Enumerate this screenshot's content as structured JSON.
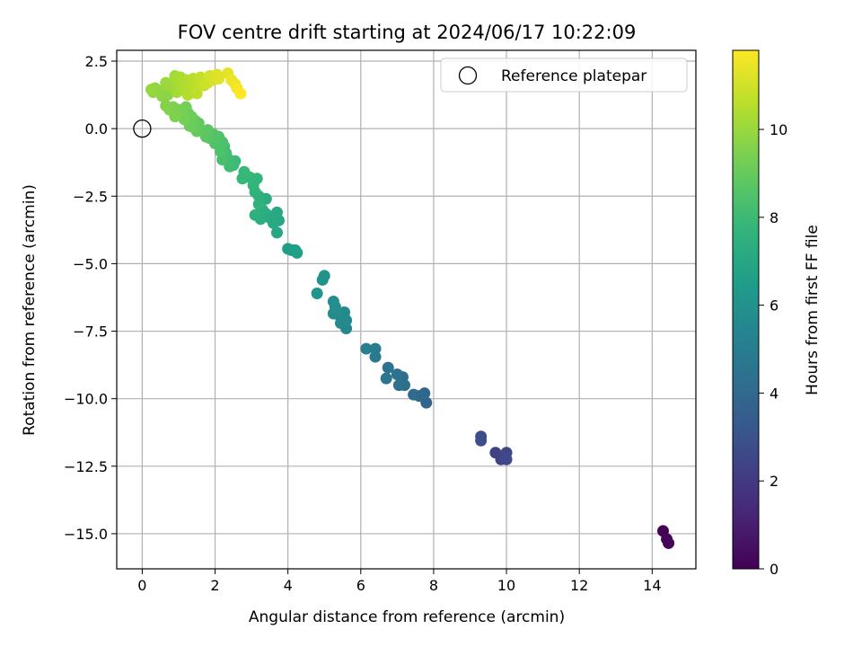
{
  "chart_data": {
    "type": "scatter",
    "title": "FOV centre drift starting at 2024/06/17 10:22:09",
    "xlabel": "Angular distance from reference (arcmin)",
    "ylabel": "Rotation from reference (arcmin)",
    "xlim": [
      -0.7,
      15.2
    ],
    "ylim": [
      -16.3,
      2.9
    ],
    "xticks": [
      0,
      2,
      4,
      6,
      8,
      10,
      12,
      14
    ],
    "yticks": [
      2.5,
      0.0,
      -2.5,
      -5.0,
      -7.5,
      -10.0,
      -12.5,
      -15.0
    ],
    "grid": true,
    "colormap": "viridis",
    "legend": {
      "placement": "top-right",
      "label": "Reference platepar"
    },
    "reference_point": {
      "x": 0,
      "y": 0
    },
    "colorbar": {
      "label": "Hours from first FF file",
      "range": [
        0,
        11.8
      ],
      "ticks": [
        0,
        2,
        4,
        6,
        8,
        10
      ]
    },
    "points": [
      {
        "x": 14.3,
        "y": -14.9,
        "c": 0.0
      },
      {
        "x": 14.4,
        "y": -15.2,
        "c": 0.1
      },
      {
        "x": 14.45,
        "y": -15.35,
        "c": 0.2
      },
      {
        "x": 9.7,
        "y": -12.0,
        "c": 2.3
      },
      {
        "x": 9.85,
        "y": -12.25,
        "c": 2.4
      },
      {
        "x": 10.0,
        "y": -12.0,
        "c": 2.5
      },
      {
        "x": 10.0,
        "y": -12.25,
        "c": 2.6
      },
      {
        "x": 9.3,
        "y": -11.4,
        "c": 2.8
      },
      {
        "x": 9.3,
        "y": -11.55,
        "c": 2.85
      },
      {
        "x": 7.8,
        "y": -10.15,
        "c": 3.8
      },
      {
        "x": 7.75,
        "y": -9.8,
        "c": 3.9
      },
      {
        "x": 7.6,
        "y": -9.9,
        "c": 4.0
      },
      {
        "x": 7.45,
        "y": -9.85,
        "c": 4.1
      },
      {
        "x": 7.2,
        "y": -9.5,
        "c": 4.2
      },
      {
        "x": 7.15,
        "y": -9.2,
        "c": 4.3
      },
      {
        "x": 7.05,
        "y": -9.5,
        "c": 4.4
      },
      {
        "x": 7.0,
        "y": -9.1,
        "c": 4.45
      },
      {
        "x": 6.75,
        "y": -8.85,
        "c": 4.5
      },
      {
        "x": 6.7,
        "y": -9.25,
        "c": 4.6
      },
      {
        "x": 6.4,
        "y": -8.45,
        "c": 4.8
      },
      {
        "x": 6.4,
        "y": -8.15,
        "c": 4.9
      },
      {
        "x": 6.15,
        "y": -8.15,
        "c": 5.0
      },
      {
        "x": 5.6,
        "y": -7.4,
        "c": 5.5
      },
      {
        "x": 5.6,
        "y": -7.1,
        "c": 5.55
      },
      {
        "x": 5.55,
        "y": -6.8,
        "c": 5.6
      },
      {
        "x": 5.45,
        "y": -7.2,
        "c": 5.65
      },
      {
        "x": 5.4,
        "y": -6.9,
        "c": 5.7
      },
      {
        "x": 5.25,
        "y": -6.85,
        "c": 5.75
      },
      {
        "x": 5.3,
        "y": -6.6,
        "c": 5.8
      },
      {
        "x": 5.25,
        "y": -6.4,
        "c": 5.85
      },
      {
        "x": 4.95,
        "y": -5.6,
        "c": 6.0
      },
      {
        "x": 5.0,
        "y": -5.45,
        "c": 6.05
      },
      {
        "x": 4.8,
        "y": -6.1,
        "c": 6.1
      },
      {
        "x": 4.0,
        "y": -4.45,
        "c": 6.5
      },
      {
        "x": 4.1,
        "y": -4.5,
        "c": 6.55
      },
      {
        "x": 4.2,
        "y": -4.5,
        "c": 6.6
      },
      {
        "x": 4.25,
        "y": -4.6,
        "c": 6.65
      },
      {
        "x": 3.7,
        "y": -3.85,
        "c": 7.0
      },
      {
        "x": 3.75,
        "y": -3.4,
        "c": 7.05
      },
      {
        "x": 3.7,
        "y": -3.1,
        "c": 7.1
      },
      {
        "x": 3.6,
        "y": -3.5,
        "c": 7.15
      },
      {
        "x": 3.5,
        "y": -3.3,
        "c": 7.2
      },
      {
        "x": 3.4,
        "y": -3.15,
        "c": 7.25
      },
      {
        "x": 3.4,
        "y": -2.6,
        "c": 7.3
      },
      {
        "x": 3.3,
        "y": -3.0,
        "c": 7.35
      },
      {
        "x": 3.25,
        "y": -3.35,
        "c": 7.4
      },
      {
        "x": 3.1,
        "y": -3.2,
        "c": 7.45
      },
      {
        "x": 3.2,
        "y": -2.5,
        "c": 7.5
      },
      {
        "x": 3.1,
        "y": -2.35,
        "c": 7.55
      },
      {
        "x": 3.2,
        "y": -2.8,
        "c": 7.6
      },
      {
        "x": 3.15,
        "y": -1.85,
        "c": 7.7
      },
      {
        "x": 3.05,
        "y": -2.1,
        "c": 7.75
      },
      {
        "x": 2.95,
        "y": -1.8,
        "c": 7.8
      },
      {
        "x": 2.75,
        "y": -1.85,
        "c": 7.85
      },
      {
        "x": 2.8,
        "y": -1.6,
        "c": 7.9
      },
      {
        "x": 2.55,
        "y": -1.2,
        "c": 8.0
      },
      {
        "x": 2.5,
        "y": -1.35,
        "c": 8.05
      },
      {
        "x": 2.4,
        "y": -1.4,
        "c": 8.1
      },
      {
        "x": 2.35,
        "y": -1.1,
        "c": 8.15
      },
      {
        "x": 2.3,
        "y": -0.9,
        "c": 8.2
      },
      {
        "x": 2.25,
        "y": -0.65,
        "c": 8.25
      },
      {
        "x": 2.2,
        "y": -1.15,
        "c": 8.3
      },
      {
        "x": 2.2,
        "y": -0.5,
        "c": 8.4
      },
      {
        "x": 2.15,
        "y": -0.85,
        "c": 8.45
      },
      {
        "x": 2.1,
        "y": -0.3,
        "c": 8.5
      },
      {
        "x": 2.0,
        "y": -0.55,
        "c": 8.55
      },
      {
        "x": 1.95,
        "y": -0.2,
        "c": 8.6
      },
      {
        "x": 1.85,
        "y": -0.35,
        "c": 8.65
      },
      {
        "x": 1.8,
        "y": -0.05,
        "c": 8.7
      },
      {
        "x": 1.75,
        "y": -0.3,
        "c": 8.75
      },
      {
        "x": 1.7,
        "y": -0.1,
        "c": 8.8
      },
      {
        "x": 1.6,
        "y": -0.05,
        "c": 8.85
      },
      {
        "x": 1.55,
        "y": 0.2,
        "c": 8.9
      },
      {
        "x": 1.5,
        "y": -0.1,
        "c": 8.95
      },
      {
        "x": 1.45,
        "y": 0.3,
        "c": 9.0
      },
      {
        "x": 1.4,
        "y": 0.05,
        "c": 9.05
      },
      {
        "x": 1.35,
        "y": 0.45,
        "c": 9.1
      },
      {
        "x": 1.3,
        "y": 0.1,
        "c": 9.15
      },
      {
        "x": 1.25,
        "y": 0.6,
        "c": 9.2
      },
      {
        "x": 1.2,
        "y": 0.8,
        "c": 9.25
      },
      {
        "x": 1.15,
        "y": 0.35,
        "c": 9.3
      },
      {
        "x": 1.1,
        "y": 0.55,
        "c": 9.35
      },
      {
        "x": 1.0,
        "y": 0.7,
        "c": 9.4
      },
      {
        "x": 0.9,
        "y": 0.45,
        "c": 9.45
      },
      {
        "x": 0.85,
        "y": 0.8,
        "c": 9.5
      },
      {
        "x": 0.75,
        "y": 0.7,
        "c": 9.55
      },
      {
        "x": 0.65,
        "y": 0.85,
        "c": 9.6
      },
      {
        "x": 0.7,
        "y": 1.25,
        "c": 9.65
      },
      {
        "x": 0.6,
        "y": 1.45,
        "c": 9.7
      },
      {
        "x": 0.55,
        "y": 1.2,
        "c": 9.75
      },
      {
        "x": 0.45,
        "y": 1.35,
        "c": 9.8
      },
      {
        "x": 0.35,
        "y": 1.5,
        "c": 9.85
      },
      {
        "x": 0.3,
        "y": 1.35,
        "c": 9.9
      },
      {
        "x": 0.25,
        "y": 1.45,
        "c": 9.95
      },
      {
        "x": 0.65,
        "y": 1.7,
        "c": 10.0
      },
      {
        "x": 0.75,
        "y": 1.55,
        "c": 10.05
      },
      {
        "x": 0.85,
        "y": 1.65,
        "c": 10.1
      },
      {
        "x": 0.9,
        "y": 1.95,
        "c": 10.15
      },
      {
        "x": 0.95,
        "y": 1.35,
        "c": 10.2
      },
      {
        "x": 1.0,
        "y": 1.7,
        "c": 10.25
      },
      {
        "x": 1.05,
        "y": 1.9,
        "c": 10.3
      },
      {
        "x": 1.1,
        "y": 1.5,
        "c": 10.35
      },
      {
        "x": 1.2,
        "y": 1.8,
        "c": 10.4
      },
      {
        "x": 1.25,
        "y": 1.25,
        "c": 10.45
      },
      {
        "x": 1.3,
        "y": 1.6,
        "c": 10.5
      },
      {
        "x": 1.4,
        "y": 1.85,
        "c": 10.55
      },
      {
        "x": 1.45,
        "y": 1.55,
        "c": 10.6
      },
      {
        "x": 1.5,
        "y": 1.3,
        "c": 10.65
      },
      {
        "x": 1.55,
        "y": 1.75,
        "c": 10.7
      },
      {
        "x": 1.6,
        "y": 1.9,
        "c": 10.75
      },
      {
        "x": 1.7,
        "y": 1.6,
        "c": 10.85
      },
      {
        "x": 1.8,
        "y": 1.7,
        "c": 10.95
      },
      {
        "x": 1.85,
        "y": 1.95,
        "c": 11.0
      },
      {
        "x": 1.95,
        "y": 1.8,
        "c": 11.1
      },
      {
        "x": 2.05,
        "y": 2.0,
        "c": 11.2
      },
      {
        "x": 2.1,
        "y": 1.85,
        "c": 11.25
      },
      {
        "x": 2.35,
        "y": 2.05,
        "c": 11.35
      },
      {
        "x": 2.45,
        "y": 1.8,
        "c": 11.45
      },
      {
        "x": 2.55,
        "y": 1.65,
        "c": 11.55
      },
      {
        "x": 2.6,
        "y": 1.5,
        "c": 11.65
      },
      {
        "x": 2.7,
        "y": 1.3,
        "c": 11.8
      }
    ]
  }
}
